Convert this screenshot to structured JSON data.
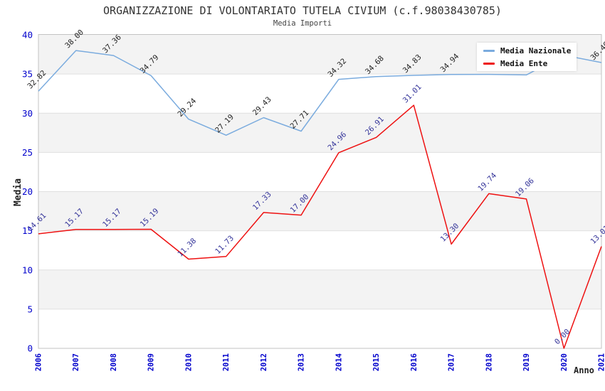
{
  "chart_data": {
    "type": "line",
    "title": "ORGANIZZAZIONE DI VOLONTARIATO TUTELA CIVIUM (c.f.98038430785)",
    "subtitle": "Media Importi",
    "xlabel": "Anno",
    "ylabel": "Media",
    "x": [
      "2006",
      "2007",
      "2008",
      "2009",
      "2010",
      "2011",
      "2012",
      "2013",
      "2014",
      "2015",
      "2016",
      "2017",
      "2018",
      "2019",
      "2020",
      "2021"
    ],
    "series": [
      {
        "name": "Media Nazionale",
        "color": "#7aabde",
        "label_color": "#222222",
        "values": [
          32.82,
          38.0,
          37.36,
          34.79,
          29.24,
          27.19,
          29.43,
          27.71,
          34.32,
          34.68,
          34.83,
          34.94,
          34.96,
          34.88,
          37.4,
          36.46
        ],
        "labels": [
          "32.82",
          "38.00",
          "37.36",
          "34.79",
          "29.24",
          "27.19",
          "29.43",
          "27.71",
          "34.32",
          "34.68",
          "34.83",
          "34.94",
          null,
          null,
          null,
          "36.46"
        ]
      },
      {
        "name": "Media Ente",
        "color": "#ee1111",
        "label_color": "#333399",
        "values": [
          14.61,
          15.17,
          15.17,
          15.19,
          11.38,
          11.73,
          17.33,
          17.0,
          24.96,
          26.91,
          31.01,
          13.3,
          19.74,
          19.06,
          0.0,
          13.01
        ],
        "labels": [
          "14.61",
          "15.17",
          "15.17",
          "15.19",
          "11.38",
          "11.73",
          "17.33",
          "17.00",
          "24.96",
          "26.91",
          "31.01",
          "13.30",
          "19.74",
          "19.06",
          "0.00",
          "13.01"
        ]
      }
    ],
    "ylim": [
      0,
      40
    ],
    "yticks": [
      0,
      5,
      10,
      15,
      20,
      25,
      30,
      35,
      40
    ],
    "grid": "horizontal",
    "legend_position": "top-right",
    "plot": {
      "band_color": "#f3f3f3",
      "gray_bands": [
        [
          5,
          10
        ],
        [
          15,
          20
        ],
        [
          25,
          30
        ],
        [
          35,
          40
        ]
      ],
      "grid_color": "#e0e0e0",
      "border_color": "#c3c3c3",
      "tick_color": "#0000cc"
    }
  }
}
